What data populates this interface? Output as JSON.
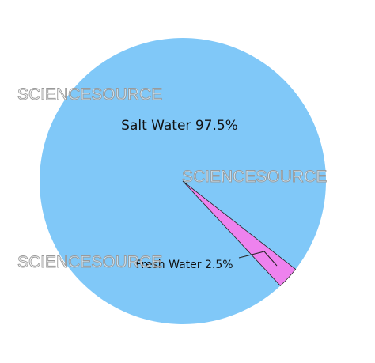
{
  "chart_data": {
    "type": "pie",
    "categories": [
      "Salt Water",
      "Fresh Water"
    ],
    "values": [
      97.5,
      2.5
    ],
    "value_labels": [
      "97.5%",
      "2.5%"
    ],
    "colors": [
      "#80c8f8",
      "#ee82ee"
    ],
    "watermarks": [
      "SCIENCESOURCE",
      "SCIENCESOURCE",
      "SCIENCESOURCE"
    ]
  }
}
